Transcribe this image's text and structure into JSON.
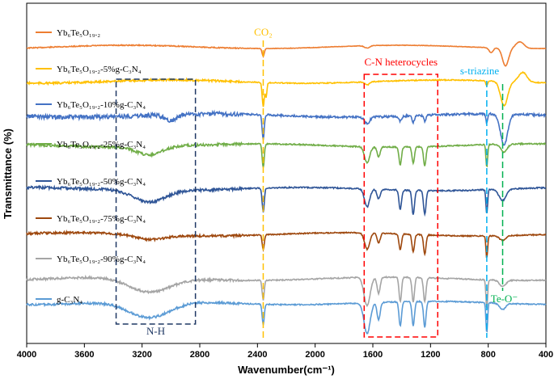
{
  "chart_data": {
    "type": "line",
    "title": "",
    "xlabel": "Wavenumber(cm⁻¹)",
    "ylabel": "Transmittance (%)",
    "xlim": [
      4000,
      400
    ],
    "x_reversed": true,
    "x_ticks": [
      4000,
      3600,
      3200,
      2800,
      2400,
      2000,
      1600,
      1200,
      800,
      400
    ],
    "x_tick_labels": [
      "4000",
      "3600",
      "3200",
      "2800",
      "2400",
      "2000",
      "1600",
      "1200",
      "800",
      "400"
    ],
    "y_ticks_shown": false,
    "series": [
      {
        "name": "Yb₆Te₅O₁₉.₂",
        "color": "#ED7D31",
        "offset": 58,
        "features": [
          {
            "x": 2360,
            "depth": 10,
            "w": 10
          },
          {
            "x": 1640,
            "depth": 3,
            "w": 25
          },
          {
            "x": 780,
            "depth": 6,
            "w": 20
          },
          {
            "x": 680,
            "depth": 22,
            "w": 30
          },
          {
            "x": 580,
            "depth": -8,
            "w": 40
          }
        ],
        "noise": 0.6
      },
      {
        "name": "Yb₆Te₅O₁₉.₂-5%g-C₃N₄",
        "color": "#FFC000",
        "offset": 101,
        "features": [
          {
            "x": 2360,
            "depth": 30,
            "w": 10
          },
          {
            "x": 2340,
            "depth": 18,
            "w": 8
          },
          {
            "x": 1640,
            "depth": 4,
            "w": 20
          },
          {
            "x": 810,
            "depth": 6,
            "w": 10
          },
          {
            "x": 690,
            "depth": 30,
            "w": 35
          },
          {
            "x": 560,
            "depth": -12,
            "w": 40
          }
        ],
        "noise": 1.2
      },
      {
        "name": "Yb₆Te₅O₁₉.₂-10%g-C₃N₄",
        "color": "#4472C4",
        "offset": 143,
        "features": [
          {
            "x": 3000,
            "depth": 7,
            "w": 60
          },
          {
            "x": 2360,
            "depth": 30,
            "w": 10
          },
          {
            "x": 1640,
            "depth": 8,
            "w": 25
          },
          {
            "x": 1410,
            "depth": 6,
            "w": 15
          },
          {
            "x": 1320,
            "depth": 8,
            "w": 12
          },
          {
            "x": 1240,
            "depth": 7,
            "w": 12
          },
          {
            "x": 810,
            "depth": 12,
            "w": 8
          },
          {
            "x": 690,
            "depth": 38,
            "w": 35
          }
        ],
        "noise": 2.6
      },
      {
        "name": "Yb₆Te₅O₁₉.₂-25%g-C₃N₄",
        "color": "#70AD47",
        "offset": 180,
        "features": [
          {
            "x": 3150,
            "depth": 10,
            "w": 120
          },
          {
            "x": 2360,
            "depth": 30,
            "w": 10
          },
          {
            "x": 1640,
            "depth": 20,
            "w": 25
          },
          {
            "x": 1560,
            "depth": 12,
            "w": 15
          },
          {
            "x": 1410,
            "depth": 22,
            "w": 12
          },
          {
            "x": 1320,
            "depth": 20,
            "w": 12
          },
          {
            "x": 1240,
            "depth": 24,
            "w": 12
          },
          {
            "x": 810,
            "depth": 28,
            "w": 8
          },
          {
            "x": 690,
            "depth": 10,
            "w": 30
          }
        ],
        "noise": 1.6
      },
      {
        "name": "Yb₆Te₅O₁₉.₂-50%g-C₃N₄",
        "color": "#2F5597",
        "offset": 234,
        "features": [
          {
            "x": 3150,
            "depth": 14,
            "w": 150
          },
          {
            "x": 2360,
            "depth": 30,
            "w": 10
          },
          {
            "x": 1640,
            "depth": 22,
            "w": 25
          },
          {
            "x": 1560,
            "depth": 12,
            "w": 15
          },
          {
            "x": 1410,
            "depth": 24,
            "w": 12
          },
          {
            "x": 1320,
            "depth": 30,
            "w": 12
          },
          {
            "x": 1240,
            "depth": 30,
            "w": 12
          },
          {
            "x": 810,
            "depth": 30,
            "w": 8
          },
          {
            "x": 700,
            "depth": 14,
            "w": 35
          }
        ],
        "noise": 1.6
      },
      {
        "name": "Yb₆Te₅O₁₉.₂-75%g-C₃N₄",
        "color": "#9E480E",
        "offset": 290,
        "features": [
          {
            "x": 3150,
            "depth": 6,
            "w": 150
          },
          {
            "x": 2360,
            "depth": 18,
            "w": 10
          },
          {
            "x": 1640,
            "depth": 20,
            "w": 25
          },
          {
            "x": 1560,
            "depth": 12,
            "w": 15
          },
          {
            "x": 1410,
            "depth": 20,
            "w": 12
          },
          {
            "x": 1320,
            "depth": 22,
            "w": 12
          },
          {
            "x": 1240,
            "depth": 24,
            "w": 12
          },
          {
            "x": 810,
            "depth": 28,
            "w": 8
          },
          {
            "x": 700,
            "depth": 6,
            "w": 30
          }
        ],
        "noise": 1.4
      },
      {
        "name": "Yb₆Te₅O₁₉.₂-90%g-C₃N₄",
        "color": "#A5A5A5",
        "offset": 345,
        "features": [
          {
            "x": 3150,
            "depth": 18,
            "w": 200
          },
          {
            "x": 2360,
            "depth": 24,
            "w": 10
          },
          {
            "x": 1640,
            "depth": 35,
            "w": 30
          },
          {
            "x": 1560,
            "depth": 20,
            "w": 15
          },
          {
            "x": 1410,
            "depth": 30,
            "w": 12
          },
          {
            "x": 1320,
            "depth": 30,
            "w": 12
          },
          {
            "x": 1240,
            "depth": 30,
            "w": 12
          },
          {
            "x": 810,
            "depth": 36,
            "w": 8
          },
          {
            "x": 700,
            "depth": 8,
            "w": 30
          }
        ],
        "noise": 1.4
      },
      {
        "name": "g-C₃N₄",
        "color": "#5B9BD5",
        "offset": 375,
        "features": [
          {
            "x": 3150,
            "depth": 20,
            "w": 200
          },
          {
            "x": 2360,
            "depth": 26,
            "w": 10
          },
          {
            "x": 1640,
            "depth": 38,
            "w": 30
          },
          {
            "x": 1560,
            "depth": 22,
            "w": 15
          },
          {
            "x": 1410,
            "depth": 30,
            "w": 12
          },
          {
            "x": 1320,
            "depth": 30,
            "w": 12
          },
          {
            "x": 1240,
            "depth": 32,
            "w": 12
          },
          {
            "x": 810,
            "depth": 38,
            "w": 8
          },
          {
            "x": 700,
            "depth": 8,
            "w": 30
          }
        ],
        "noise": 1.4
      }
    ],
    "annotations": [
      {
        "id": "co2",
        "text": "CO₂",
        "color": "#FFC000",
        "box": null,
        "line_x": 2360
      },
      {
        "id": "cn",
        "text": "C-N heterocycles",
        "color": "#FF0000",
        "box_x": [
          1660,
          1150
        ]
      },
      {
        "id": "nh",
        "text": "N-H",
        "color": "#1F3864",
        "box_x": [
          3380,
          2830
        ]
      },
      {
        "id": "striazine",
        "text": "s-triazine",
        "color": "#00B0F0",
        "line_x": 810
      },
      {
        "id": "teo",
        "text": "Te-O⁻",
        "color": "#00B050",
        "line_x": 700
      }
    ]
  }
}
